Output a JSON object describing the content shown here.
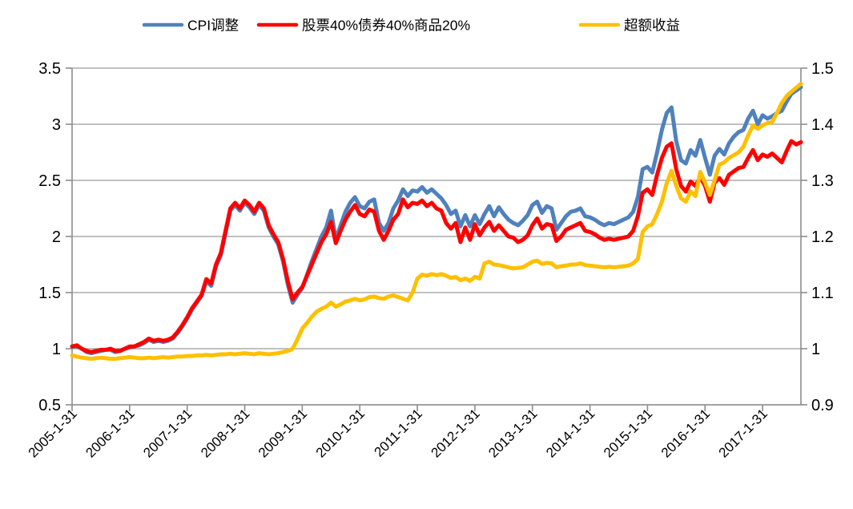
{
  "chart_data": {
    "type": "line",
    "title": "",
    "x_start": "2005-01-31",
    "x_freq": "monthly",
    "x_tick_labels": [
      "2005-1-31",
      "2006-1-31",
      "2007-1-31",
      "2008-1-31",
      "2009-1-31",
      "2010-1-31",
      "2011-1-31",
      "2012-1-31",
      "2013-1-31",
      "2014-1-31",
      "2015-1-31",
      "2016-1-31",
      "2017-1-31"
    ],
    "left_axis": {
      "min": 0.5,
      "max": 3.5,
      "tick_labels": [
        "3.5",
        "3",
        "2.5",
        "2",
        "1.5",
        "1",
        "0.5"
      ]
    },
    "right_axis": {
      "min": 0.9,
      "max": 1.5,
      "tick_labels": [
        "1.5",
        "1.4",
        "1.3",
        "1.2",
        "1.1",
        "1",
        "0.9"
      ]
    },
    "grid": true,
    "grid_color": "#9b9b9b",
    "axis_color": "#8c8c8c",
    "legend_position": "top",
    "series": [
      {
        "name": "CPI调整",
        "color": "#4F81BD",
        "axis": "left",
        "values": [
          1.02,
          1.02,
          1.0,
          0.97,
          0.96,
          0.97,
          0.98,
          0.99,
          0.99,
          0.97,
          0.98,
          1.0,
          1.01,
          1.02,
          1.03,
          1.05,
          1.08,
          1.06,
          1.07,
          1.06,
          1.07,
          1.09,
          1.14,
          1.2,
          1.27,
          1.35,
          1.41,
          1.47,
          1.6,
          1.56,
          1.73,
          1.83,
          2.03,
          2.23,
          2.28,
          2.23,
          2.3,
          2.26,
          2.2,
          2.28,
          2.23,
          2.08,
          2.0,
          1.93,
          1.78,
          1.57,
          1.41,
          1.48,
          1.54,
          1.66,
          1.78,
          1.89,
          2.0,
          2.08,
          2.23,
          1.97,
          2.1,
          2.22,
          2.3,
          2.35,
          2.27,
          2.25,
          2.31,
          2.33,
          2.12,
          2.05,
          2.12,
          2.25,
          2.32,
          2.42,
          2.36,
          2.41,
          2.4,
          2.44,
          2.39,
          2.42,
          2.38,
          2.34,
          2.28,
          2.2,
          2.23,
          2.09,
          2.19,
          2.09,
          2.19,
          2.11,
          2.2,
          2.27,
          2.18,
          2.26,
          2.2,
          2.15,
          2.12,
          2.1,
          2.14,
          2.19,
          2.28,
          2.31,
          2.21,
          2.27,
          2.25,
          2.06,
          2.12,
          2.18,
          2.22,
          2.23,
          2.25,
          2.18,
          2.17,
          2.15,
          2.12,
          2.1,
          2.12,
          2.11,
          2.13,
          2.15,
          2.17,
          2.22,
          2.35,
          2.6,
          2.62,
          2.57,
          2.75,
          2.95,
          3.1,
          3.15,
          2.85,
          2.68,
          2.65,
          2.77,
          2.72,
          2.86,
          2.7,
          2.55,
          2.72,
          2.78,
          2.73,
          2.83,
          2.89,
          2.93,
          2.95,
          3.05,
          3.12,
          3.0,
          3.08,
          3.05,
          3.07,
          3.1,
          3.12,
          3.2,
          3.27,
          3.3,
          3.33
        ]
      },
      {
        "name": "股票40%债券40%商品20%",
        "color": "#FF0000",
        "axis": "left",
        "values": [
          1.02,
          1.03,
          1.0,
          0.98,
          0.97,
          0.98,
          0.99,
          0.99,
          1.0,
          0.98,
          0.98,
          1.0,
          1.02,
          1.02,
          1.04,
          1.06,
          1.09,
          1.07,
          1.08,
          1.07,
          1.08,
          1.1,
          1.15,
          1.21,
          1.28,
          1.36,
          1.42,
          1.48,
          1.62,
          1.58,
          1.75,
          1.85,
          2.05,
          2.25,
          2.3,
          2.25,
          2.32,
          2.28,
          2.22,
          2.3,
          2.25,
          2.1,
          2.02,
          1.95,
          1.8,
          1.6,
          1.44,
          1.5,
          1.55,
          1.65,
          1.75,
          1.85,
          1.95,
          2.02,
          2.13,
          1.94,
          2.05,
          2.15,
          2.22,
          2.28,
          2.2,
          2.18,
          2.24,
          2.22,
          2.05,
          1.97,
          2.05,
          2.15,
          2.2,
          2.33,
          2.26,
          2.3,
          2.29,
          2.32,
          2.27,
          2.3,
          2.25,
          2.23,
          2.12,
          2.07,
          2.12,
          1.95,
          2.08,
          1.97,
          2.11,
          2.01,
          2.08,
          2.13,
          2.05,
          2.1,
          2.05,
          2.0,
          1.99,
          1.95,
          1.97,
          2.01,
          2.1,
          2.16,
          2.07,
          2.11,
          2.1,
          1.96,
          2.0,
          2.06,
          2.08,
          2.1,
          2.12,
          2.05,
          2.04,
          2.02,
          1.99,
          1.97,
          1.98,
          1.97,
          1.98,
          1.99,
          2.0,
          2.05,
          2.18,
          2.39,
          2.42,
          2.37,
          2.55,
          2.7,
          2.8,
          2.83,
          2.6,
          2.45,
          2.4,
          2.49,
          2.45,
          2.53,
          2.45,
          2.31,
          2.48,
          2.52,
          2.46,
          2.55,
          2.58,
          2.61,
          2.62,
          2.7,
          2.77,
          2.68,
          2.73,
          2.71,
          2.74,
          2.7,
          2.66,
          2.76,
          2.85,
          2.82,
          2.84
        ]
      },
      {
        "name": "超额收益",
        "color": "#FFC000",
        "axis": "right",
        "values": [
          0.988,
          0.986,
          0.984,
          0.983,
          0.982,
          0.983,
          0.984,
          0.983,
          0.982,
          0.982,
          0.983,
          0.984,
          0.985,
          0.984,
          0.983,
          0.983,
          0.984,
          0.983,
          0.984,
          0.985,
          0.984,
          0.985,
          0.986,
          0.986,
          0.987,
          0.987,
          0.988,
          0.988,
          0.989,
          0.988,
          0.989,
          0.99,
          0.99,
          0.991,
          0.99,
          0.991,
          0.992,
          0.991,
          0.99,
          0.992,
          0.991,
          0.99,
          0.991,
          0.992,
          0.994,
          0.996,
          1.0,
          1.017,
          1.036,
          1.046,
          1.057,
          1.066,
          1.071,
          1.075,
          1.082,
          1.075,
          1.079,
          1.084,
          1.086,
          1.089,
          1.086,
          1.088,
          1.092,
          1.093,
          1.09,
          1.089,
          1.093,
          1.095,
          1.092,
          1.089,
          1.086,
          1.1,
          1.125,
          1.132,
          1.13,
          1.133,
          1.131,
          1.133,
          1.13,
          1.126,
          1.128,
          1.122,
          1.125,
          1.121,
          1.128,
          1.125,
          1.152,
          1.155,
          1.15,
          1.149,
          1.147,
          1.145,
          1.143,
          1.144,
          1.145,
          1.15,
          1.155,
          1.157,
          1.151,
          1.153,
          1.152,
          1.145,
          1.147,
          1.148,
          1.15,
          1.15,
          1.152,
          1.149,
          1.148,
          1.147,
          1.146,
          1.145,
          1.146,
          1.145,
          1.146,
          1.147,
          1.148,
          1.152,
          1.16,
          1.208,
          1.218,
          1.222,
          1.24,
          1.262,
          1.295,
          1.317,
          1.29,
          1.268,
          1.262,
          1.28,
          1.272,
          1.315,
          1.296,
          1.274,
          1.3,
          1.328,
          1.332,
          1.34,
          1.345,
          1.35,
          1.36,
          1.38,
          1.398,
          1.392,
          1.398,
          1.402,
          1.404,
          1.42,
          1.438,
          1.45,
          1.458,
          1.465,
          1.472
        ]
      }
    ]
  }
}
